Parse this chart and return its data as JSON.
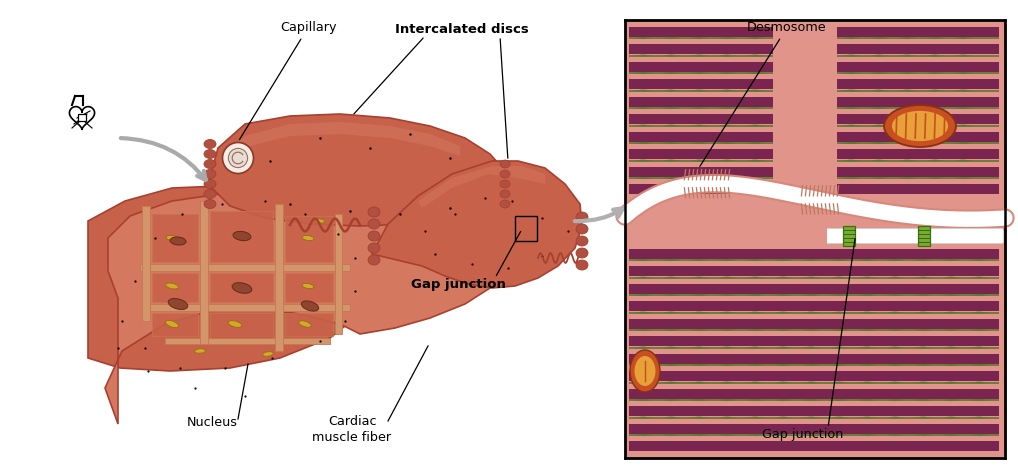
{
  "bg_color": "#ffffff",
  "fig_width": 10.18,
  "fig_height": 4.76,
  "labels": {
    "capillary": "Capillary",
    "intercalated_discs": "Intercalated discs",
    "gap_junction_left": "Gap junction",
    "nucleus": "Nucleus",
    "cardiac_muscle_fiber": "Cardiac\nmuscle fiber",
    "desmosome": "Desmosome",
    "gap_junction_right": "Gap junction"
  },
  "muscle_color": "#c8614a",
  "muscle_light": "#d47860",
  "muscle_dark": "#a84030",
  "sarcomere_purple": "#7a2550",
  "sarcomere_green": "#5a7830",
  "box_bg": "#e0948a",
  "mito_outer": "#c85020",
  "mito_inner": "#e8a840",
  "cell_membrane": "#ffffff",
  "gap_color": "#7aaa30",
  "heart_color": "#000000",
  "connective_tissue": "#d4956a",
  "inner_tissue": "#c47850"
}
